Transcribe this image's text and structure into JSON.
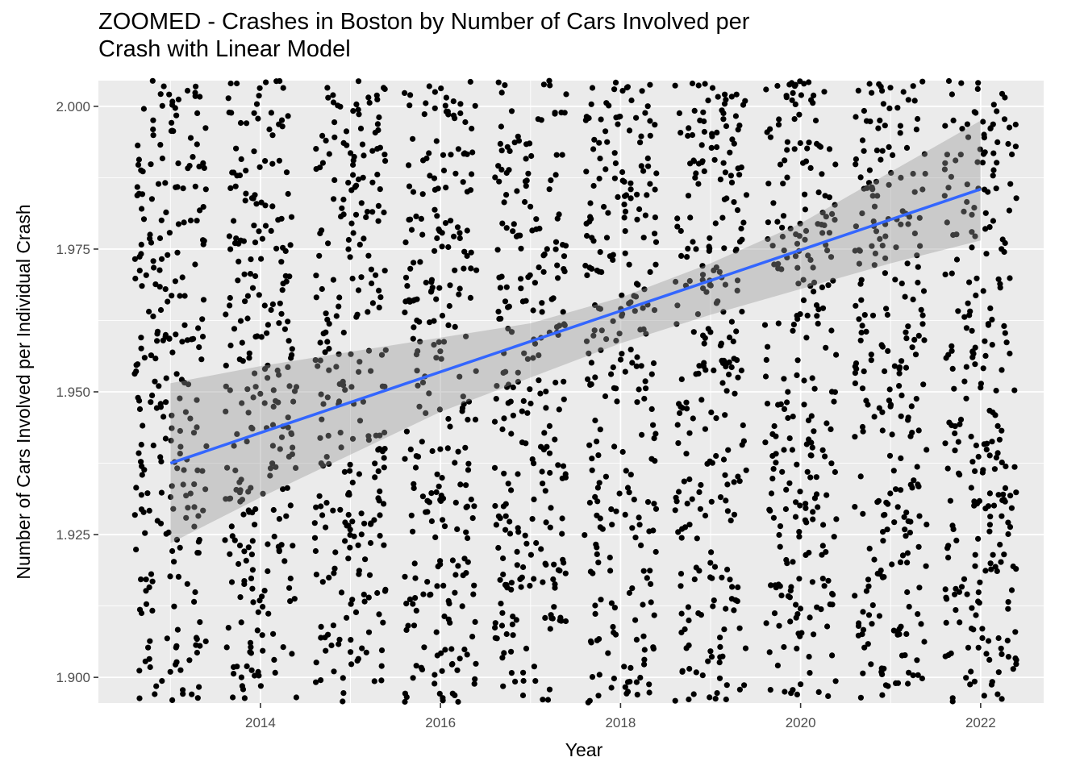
{
  "chart_data": {
    "type": "scatter",
    "title_lines": [
      "ZOOMED - Crashes in Boston by Number of Cars Involved per",
      "Crash with Linear Model"
    ],
    "xlabel": "Year",
    "ylabel": "Number of Cars Involved per Individual Crash",
    "xlim": [
      2012.2,
      2022.7
    ],
    "ylim": [
      1.8955,
      2.0045
    ],
    "x_ticks": [
      2014,
      2016,
      2018,
      2020,
      2022
    ],
    "x_tick_labels": [
      "2014",
      "2016",
      "2018",
      "2020",
      "2022"
    ],
    "y_ticks": [
      1.9,
      1.925,
      1.95,
      1.975,
      2.0
    ],
    "y_tick_labels": [
      "1.900",
      "1.925",
      "1.950",
      "1.975",
      "2.000"
    ],
    "grid": true,
    "legend": "none",
    "points": {
      "description": "jittered crash points, each year column spans roughly year-0.4 to year+0.4",
      "years": [
        2013,
        2014,
        2015,
        2016,
        2017,
        2018,
        2019,
        2020,
        2021,
        2022
      ],
      "jitter_width": 0.4,
      "approx_count_per_year": 260,
      "color": "#000000"
    },
    "linear_model": {
      "x": [
        2013,
        2022
      ],
      "y": [
        1.9375,
        1.9855
      ],
      "color": "#3366ff",
      "confidence_band": {
        "x": [
          2013,
          2014,
          2015,
          2016,
          2017,
          2018,
          2019,
          2020,
          2021,
          2022
        ],
        "lower": [
          1.9235,
          1.9315,
          1.939,
          1.9465,
          1.9525,
          1.9585,
          1.9635,
          1.968,
          1.9725,
          1.9765
        ],
        "upper": [
          1.9515,
          1.9545,
          1.957,
          1.9595,
          1.962,
          1.9665,
          1.9725,
          1.9795,
          1.9885,
          1.9975
        ],
        "color": "#999999"
      }
    },
    "panel_background": "#ebebeb",
    "grid_color": "#ffffff"
  }
}
